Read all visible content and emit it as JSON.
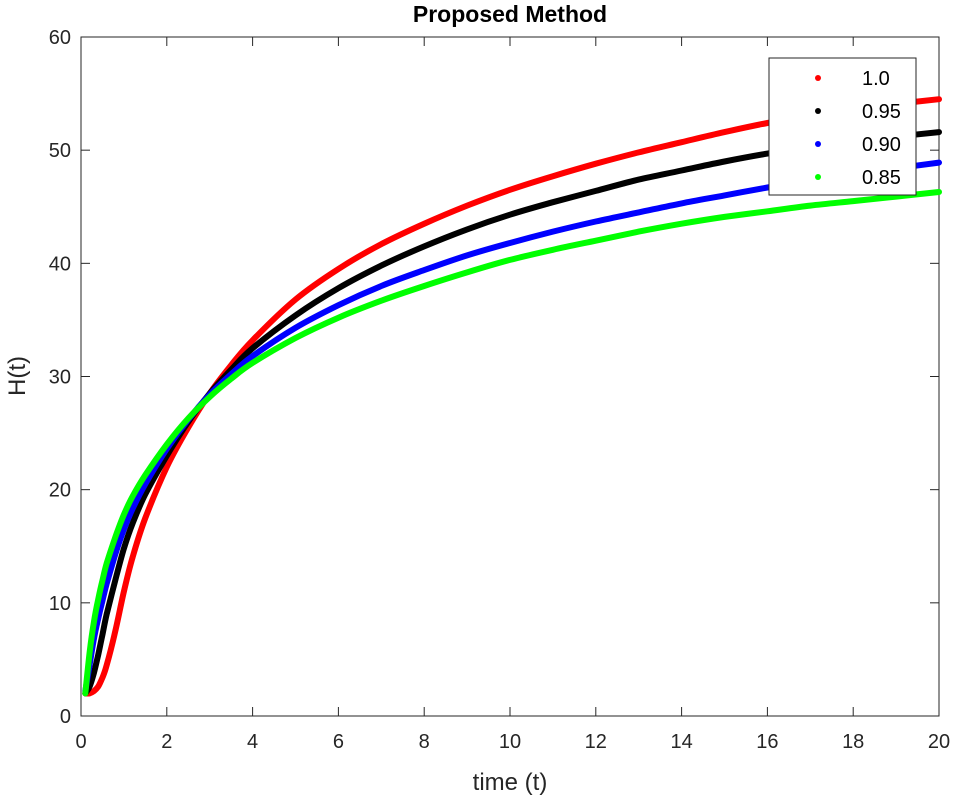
{
  "chart_data": {
    "type": "line",
    "title": "Proposed Method",
    "xlabel": "time (t)",
    "ylabel": "H(t)",
    "xlim": [
      0,
      20
    ],
    "ylim": [
      0,
      60
    ],
    "xticks": [
      0,
      2,
      4,
      6,
      8,
      10,
      12,
      14,
      16,
      18,
      20
    ],
    "yticks": [
      0,
      10,
      20,
      30,
      40,
      50,
      60
    ],
    "grid": false,
    "legend_position": "top-right",
    "x": [
      0.1,
      0.2,
      0.3,
      0.4,
      0.5,
      0.6,
      0.8,
      1.0,
      1.2,
      1.5,
      2.0,
      2.5,
      3.0,
      3.5,
      4.0,
      5.0,
      6.0,
      7.0,
      8.0,
      9.0,
      10.0,
      11.0,
      12.0,
      13.0,
      14.0,
      15.0,
      16.0,
      17.0,
      18.0,
      19.0,
      20.0
    ],
    "series": [
      {
        "name": "1.0",
        "color": "#ff0000",
        "values": [
          2.0,
          2.0,
          2.2,
          2.6,
          3.4,
          4.5,
          7.5,
          11.0,
          14.0,
          17.5,
          22.0,
          25.5,
          28.5,
          31.0,
          33.2,
          36.8,
          39.5,
          41.7,
          43.5,
          45.1,
          46.5,
          47.7,
          48.8,
          49.8,
          50.7,
          51.6,
          52.4,
          53.1,
          53.8,
          54.1,
          54.5
        ]
      },
      {
        "name": "0.95",
        "color": "#000000",
        "values": [
          2.0,
          2.6,
          3.8,
          5.4,
          7.2,
          9.0,
          12.0,
          14.8,
          17.0,
          19.6,
          23.0,
          26.0,
          28.5,
          30.6,
          32.5,
          35.4,
          37.8,
          39.8,
          41.5,
          43.0,
          44.3,
          45.4,
          46.4,
          47.4,
          48.2,
          49.0,
          49.7,
          50.3,
          50.8,
          51.2,
          51.6
        ]
      },
      {
        "name": "0.90",
        "color": "#0000ff",
        "values": [
          2.2,
          4.5,
          6.8,
          8.6,
          10.2,
          11.7,
          14.3,
          16.5,
          18.3,
          20.5,
          23.6,
          26.2,
          28.4,
          30.2,
          31.8,
          34.3,
          36.3,
          38.0,
          39.4,
          40.7,
          41.8,
          42.8,
          43.7,
          44.5,
          45.3,
          46.0,
          46.7,
          47.3,
          47.9,
          48.4,
          48.9
        ]
      },
      {
        "name": "0.85",
        "color": "#00ff00",
        "values": [
          2.0,
          5.6,
          8.3,
          10.3,
          12.0,
          13.5,
          15.8,
          17.8,
          19.4,
          21.3,
          24.0,
          26.3,
          28.2,
          29.8,
          31.2,
          33.4,
          35.2,
          36.7,
          38.0,
          39.2,
          40.3,
          41.2,
          42.0,
          42.8,
          43.5,
          44.1,
          44.6,
          45.1,
          45.5,
          45.9,
          46.3
        ]
      }
    ]
  }
}
